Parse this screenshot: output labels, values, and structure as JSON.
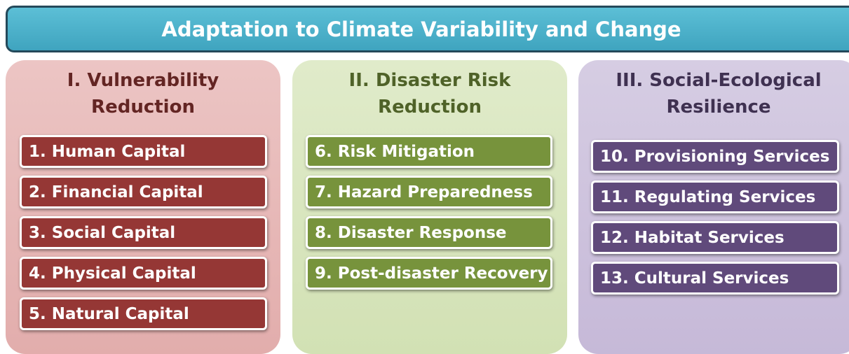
{
  "title": "Adaptation to Climate Variability and Change",
  "columns": [
    {
      "heading": [
        "I. Vulnerability",
        "Reduction"
      ],
      "items": [
        "1. Human Capital",
        "2. Financial Capital",
        "3. Social Capital",
        "4. Physical Capital",
        "5. Natural Capital"
      ]
    },
    {
      "heading": [
        "II. Disaster Risk",
        "Reduction"
      ],
      "items": [
        "6. Risk Mitigation",
        "7. Hazard Preparedness",
        "8. Disaster Response",
        "9. Post-disaster Recovery"
      ]
    },
    {
      "heading": [
        "III. Social-Ecological",
        "Resilience"
      ],
      "items": [
        "10. Provisioning Services",
        "11. Regulating Services",
        "12. Habitat Services",
        "13. Cultural Services"
      ]
    }
  ]
}
